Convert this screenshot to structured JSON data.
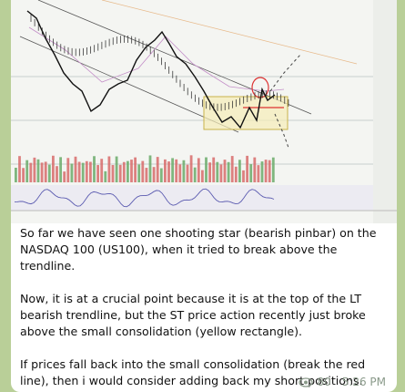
{
  "message": {
    "paragraphs": [
      "So far we have seen one shooting star (bearish pinbar) on the NASDAQ 100 (US100), when it tried to break above the trendline.",
      "Now, it is at a crucial point because it is at the top of the LT bearish trendline, but the ST price action recently just broke above the small consolidation (yellow rectangle).",
      "If prices fall back into the small consolidation (break the red line), then i would consider adding back my short positions."
    ],
    "views": "80",
    "time": "5:26 PM"
  }
}
